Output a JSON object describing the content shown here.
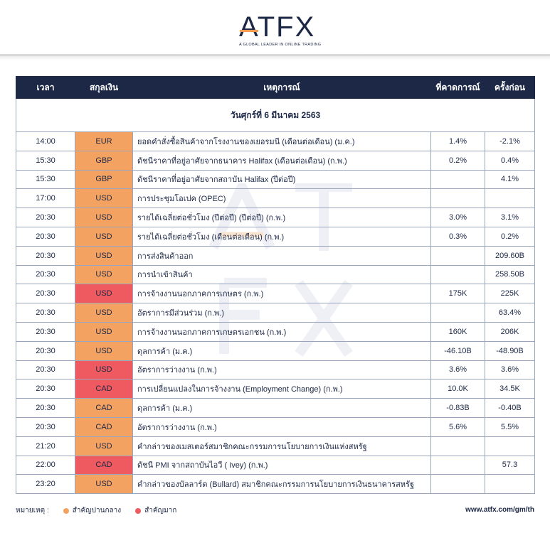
{
  "brand": {
    "name": "ATFX",
    "tagline": "A GLOBAL LEADER IN ONLINE TRADING",
    "navy": "#1c2846",
    "orange": "#f4a261",
    "red": "#ee5a5f"
  },
  "table": {
    "headers": [
      "เวลา",
      "สกุลเงิน",
      "เหตุการณ์",
      "ที่คาดการณ์",
      "ครั้งก่อน"
    ],
    "date": "วันศุกร์ที่ 6 มีนาคม 2563",
    "rows": [
      {
        "time": "14:00",
        "currency": "EUR",
        "importance": "med",
        "event": "ยอดคำสั่งซื้อสินค้าจากโรงงานของเยอรมนี (เดือนต่อเดือน) (ม.ค.)",
        "forecast": "1.4%",
        "previous": "-2.1%"
      },
      {
        "time": "15:30",
        "currency": "GBP",
        "importance": "med",
        "event": "ดัชนีราคาที่อยู่อาศัยจากธนาคาร Halifax (เดือนต่อเดือน) (ก.พ.)",
        "forecast": "0.2%",
        "previous": "0.4%"
      },
      {
        "time": "15:30",
        "currency": "GBP",
        "importance": "med",
        "event": "ดัชนีราคาที่อยู่อาศัยจากสถาบัน Halifax (ปีต่อปี)",
        "forecast": "",
        "previous": "4.1%"
      },
      {
        "time": "17:00",
        "currency": "USD",
        "importance": "med",
        "event": "การประชุมโอเปค (OPEC)",
        "forecast": "",
        "previous": ""
      },
      {
        "time": "20:30",
        "currency": "USD",
        "importance": "med",
        "event": "รายได้เฉลี่ยต่อชั่วโมง (ปีต่อปี) (ปีต่อปี) (ก.พ.)",
        "forecast": "3.0%",
        "previous": "3.1%"
      },
      {
        "time": "20:30",
        "currency": "USD",
        "importance": "med",
        "event": "รายได้เฉลี่ยต่อชั่วโมง (เดือนต่อเดือน) (ก.พ.)",
        "forecast": "0.3%",
        "previous": "0.2%"
      },
      {
        "time": "20:30",
        "currency": "USD",
        "importance": "med",
        "event": "การส่งสินค้าออก",
        "forecast": "",
        "previous": "209.60B"
      },
      {
        "time": "20:30",
        "currency": "USD",
        "importance": "med",
        "event": "การนำเข้าสินค้า",
        "forecast": "",
        "previous": "258.50B"
      },
      {
        "time": "20:30",
        "currency": "USD",
        "importance": "high",
        "event": "การจ้างงานนอกภาคการเกษตร (ก.พ.)",
        "forecast": "175K",
        "previous": "225K"
      },
      {
        "time": "20:30",
        "currency": "USD",
        "importance": "med",
        "event": "อัตราการมีส่วนร่วม (ก.พ.)",
        "forecast": "",
        "previous": "63.4%"
      },
      {
        "time": "20:30",
        "currency": "USD",
        "importance": "med",
        "event": "การจ้างงานนอกภาคการเกษตรเอกชน (ก.พ.)",
        "forecast": "160K",
        "previous": "206K"
      },
      {
        "time": "20:30",
        "currency": "USD",
        "importance": "med",
        "event": "ดุลการค้า (ม.ค.)",
        "forecast": "-46.10B",
        "previous": "-48.90B"
      },
      {
        "time": "20:30",
        "currency": "USD",
        "importance": "high",
        "event": "อัตราการว่างงาน (ก.พ.)",
        "forecast": "3.6%",
        "previous": "3.6%"
      },
      {
        "time": "20:30",
        "currency": "CAD",
        "importance": "high",
        "event": "การเปลี่ยนแปลงในการจ้างงาน (Employment Change) (ก.พ.)",
        "forecast": "10.0K",
        "previous": "34.5K"
      },
      {
        "time": "20:30",
        "currency": "CAD",
        "importance": "med",
        "event": "ดุลการค้า (ม.ค.)",
        "forecast": "-0.83B",
        "previous": "-0.40B"
      },
      {
        "time": "20:30",
        "currency": "CAD",
        "importance": "med",
        "event": "อัตราการว่างงาน (ก.พ.)",
        "forecast": "5.6%",
        "previous": "5.5%"
      },
      {
        "time": "21:20",
        "currency": "USD",
        "importance": "med",
        "event": "คำกล่าวของเมสเตอร์สมาชิกคณะกรรมการนโยบายการเงินแห่งสหรัฐ",
        "forecast": "",
        "previous": ""
      },
      {
        "time": "22:00",
        "currency": "CAD",
        "importance": "high",
        "event": "ดัชนี PMI จากสถาบันไอวี ( Ivey) (ก.พ.)",
        "forecast": "",
        "previous": "57.3"
      },
      {
        "time": "23:20",
        "currency": "USD",
        "importance": "med",
        "event": "คำกล่าวของบัลลาร์ด (Bullard) สมาชิกคณะกรรมการนโยบายการเงินธนาคารสหรัฐ",
        "forecast": "",
        "previous": ""
      }
    ]
  },
  "legend": {
    "label": "หมายเหตุ :",
    "medium": "สำคัญปานกลาง",
    "high": "สำคัญมาก"
  },
  "footer": {
    "url": "www.atfx.com/gm/th"
  }
}
